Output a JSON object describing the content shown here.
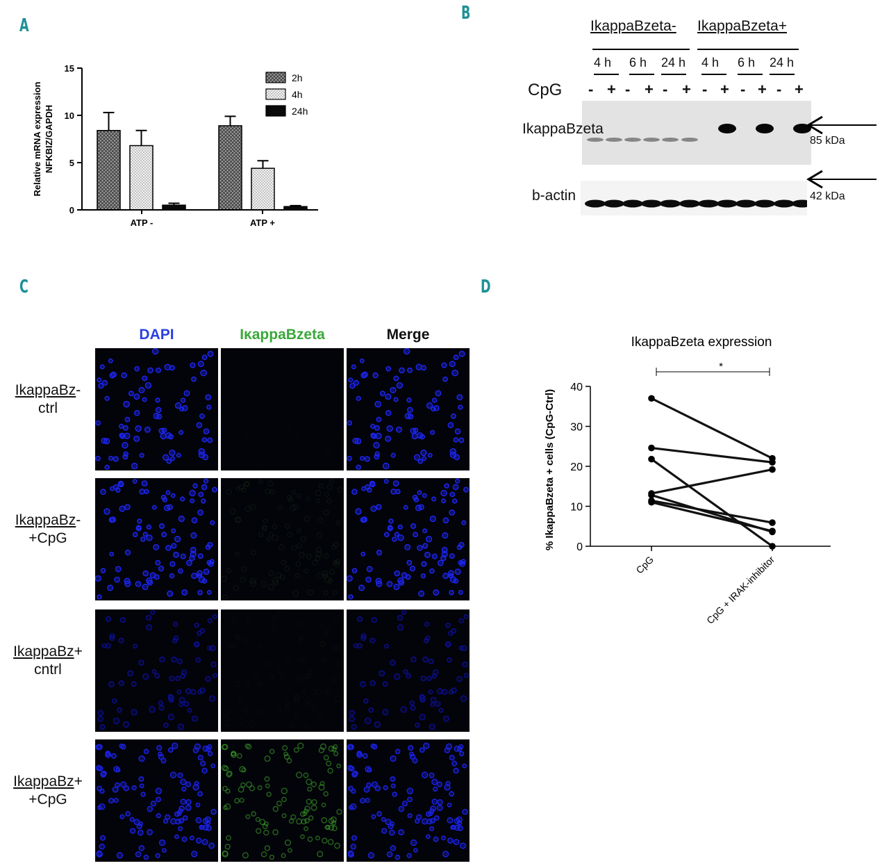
{
  "panels": {
    "a": "A",
    "b": "B",
    "c": "C",
    "d": "D"
  },
  "panel_a": {
    "chart_data": {
      "type": "bar",
      "categories": [
        "ATP -",
        "ATP +"
      ],
      "series": [
        {
          "name": "2h",
          "values": [
            8.4,
            8.9
          ],
          "errors": [
            1.9,
            1.0
          ],
          "pattern": "crosshatch-dark"
        },
        {
          "name": "4h",
          "values": [
            6.8,
            4.4
          ],
          "errors": [
            1.6,
            0.8
          ],
          "pattern": "dotted-light"
        },
        {
          "name": "24h",
          "values": [
            0.5,
            0.35
          ],
          "errors": [
            0.2,
            0.1
          ],
          "pattern": "solid-black"
        }
      ],
      "ylabel_line1": "Relative mRNA expression",
      "ylabel_line2": "NFKBIZ/GAPDH",
      "ylim": [
        0,
        15
      ],
      "yticks": [
        "0",
        "5",
        "10",
        "15"
      ],
      "legend_position": "top-right"
    }
  },
  "panel_b": {
    "group_minus": "IkappaBzeta-",
    "group_plus": "IkappaBzeta+",
    "times": [
      "4 h",
      "6 h",
      "24 h",
      "4 h",
      "6 h",
      "24 h"
    ],
    "cpg_label": "CpG",
    "signs": [
      "-",
      "+",
      "-",
      "+",
      "-",
      "+",
      "-",
      "+",
      "-",
      "+",
      "-",
      "+"
    ],
    "band1_label": "IkappaBzeta",
    "band1_kda": "85 kDa",
    "band2_label": "b-actin",
    "band2_kda": "42 kDa"
  },
  "panel_c": {
    "columns": [
      {
        "label": "DAPI",
        "color": "#2b3fe0"
      },
      {
        "label": "IκappaBzeta",
        "color": "#3aa83a"
      },
      {
        "label": "Merge",
        "color": "#111111"
      }
    ],
    "rows": [
      {
        "underlined": "IkappaBz",
        "suffix": "-",
        "second": "ctrl"
      },
      {
        "underlined": "IkappaBz",
        "suffix": "-",
        "second": "+CpG"
      },
      {
        "underlined": "IkappaBz",
        "suffix": "+",
        "second": "cntrl"
      },
      {
        "underlined": "IkappaBz",
        "suffix": "+",
        "second": "+CpG"
      }
    ]
  },
  "panel_d": {
    "chart_data": {
      "type": "line",
      "title": "IkappaBzeta expression",
      "ylabel": "% IkappaBzeta + cells (CpG-Ctrl)",
      "categories": [
        "CpG",
        "CpG + IRAK-inhibitor"
      ],
      "ylim": [
        0,
        40
      ],
      "yticks": [
        "0",
        "10",
        "20",
        "30",
        "40"
      ],
      "pairs": [
        [
          37,
          22
        ],
        [
          24.6,
          21
        ],
        [
          21.8,
          0
        ],
        [
          13.2,
          19.2
        ],
        [
          12.8,
          3.6
        ],
        [
          11.4,
          5.9
        ],
        [
          11.0,
          3.8
        ]
      ],
      "significance": "*"
    }
  }
}
